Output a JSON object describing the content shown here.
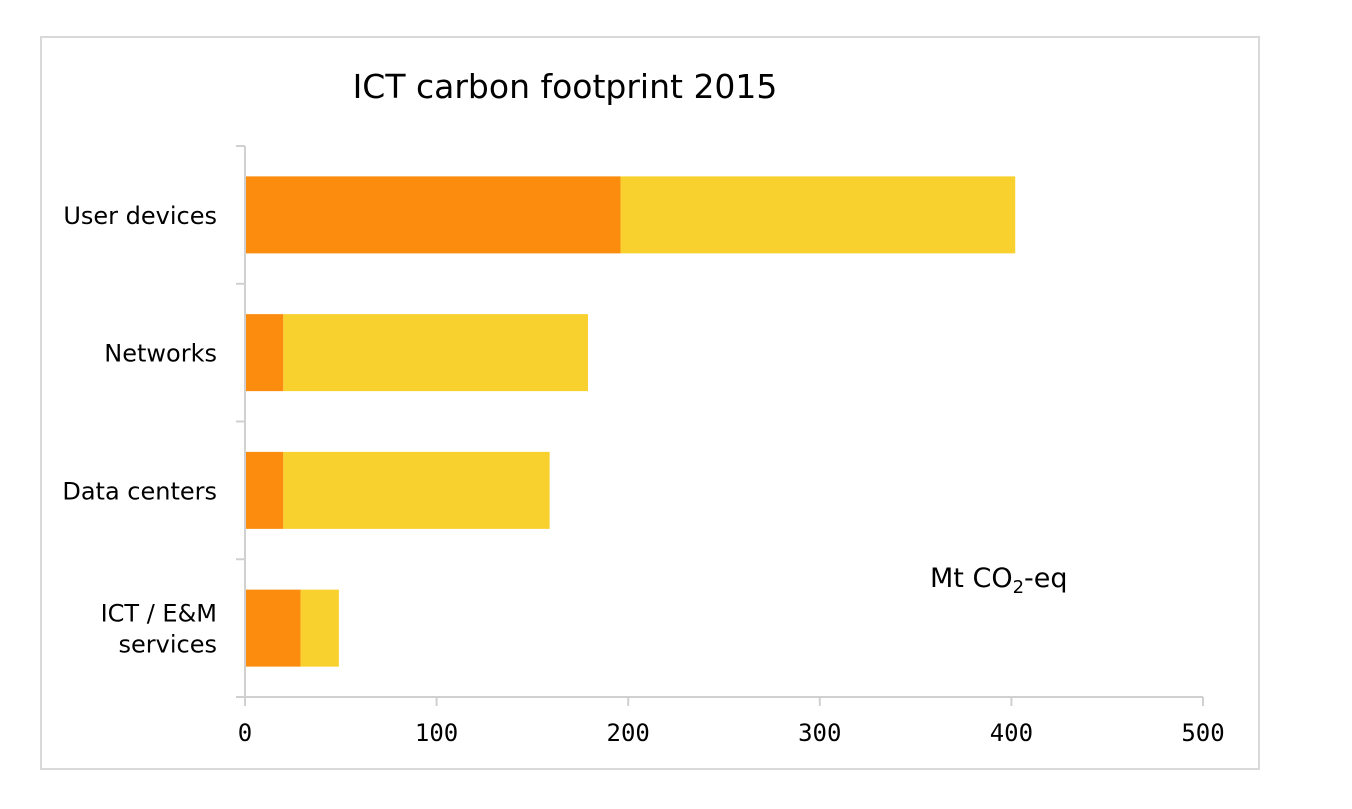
{
  "chart_data": {
    "type": "bar",
    "orientation": "horizontal",
    "stacked": true,
    "title": "ICT carbon footprint 2015",
    "categories": [
      "User devices",
      "Networks",
      "Data centers",
      "ICT / E&M services"
    ],
    "category_lines": [
      [
        "User devices"
      ],
      [
        "Networks"
      ],
      [
        "Data centers"
      ],
      [
        "ICT / E&M",
        "services"
      ]
    ],
    "series": [
      {
        "values": [
          196,
          20,
          20,
          29
        ],
        "color": "#fb8c0e"
      },
      {
        "values": [
          206,
          159,
          139,
          20
        ],
        "color": "#f8d12e"
      }
    ],
    "xlim": [
      0,
      500
    ],
    "x_ticks": [
      0,
      100,
      200,
      300,
      400,
      500
    ],
    "unit_label": {
      "prefix": "Mt CO",
      "subscript": "2",
      "suffix": "-eq"
    },
    "legend": "none",
    "grid": false
  }
}
